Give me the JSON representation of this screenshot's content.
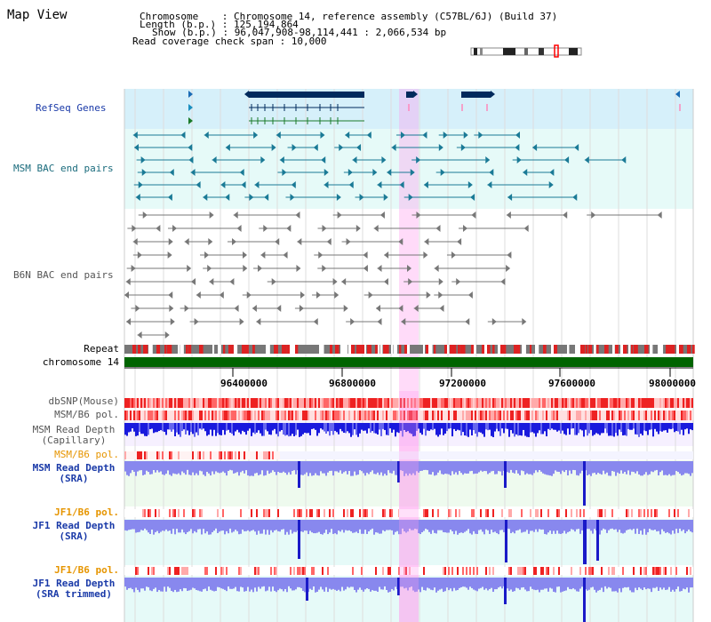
{
  "title": "Map View",
  "info": {
    "line1": "Chromosome    : Chromosome 14, reference assembly (C57BL/6J) (Build 37)",
    "line2": "Length (b.p.) : 125,194,864",
    "line3": "Show (b.p.) : 96,047,908-98,114,441 : 2,066,534 bp",
    "line4": "Read coverage check span : 10,000"
  },
  "colors": {
    "gene": "#002a5c",
    "mrna_tick": "#ff88bb",
    "refseq_bg": "#d6f0fa",
    "bac_msm": "#1a7a96",
    "bac_b6n": "#777777",
    "highlight": "#ff99ee",
    "chromosome": "#006400",
    "snp": "#ff5555",
    "depth": "#2222dd",
    "depth_light": "#8888ee",
    "label_blue": "#1a3aa8",
    "label_orange": "#e69500",
    "label_teal": "#1a6b7c"
  },
  "tracks": {
    "refseq": "RefSeq Genes",
    "msm_bac": "MSM BAC end pairs",
    "b6n_bac": "B6N BAC end pairs",
    "repeat": "Repeat",
    "chromosome": "chromosome 14",
    "dbsnp": "dbSNP(Mouse)",
    "msm_b6_pol": "MSM/B6 pol.",
    "msm_depth_cap": "MSM Read Depth\n(Capillary)",
    "msm_b6_pol2": "MSM/B6 pol.",
    "msm_depth_sra": "MSM Read Depth\n(SRA)",
    "jf1_b6_pol": "JF1/B6 pol.",
    "jf1_depth_sra": "JF1 Read Depth\n(SRA)",
    "jf1_b6_pol2": "JF1/B6 pol.",
    "jf1_depth_trim": "JF1 Read Depth\n(SRA trimmed)"
  },
  "axis_ticks": [
    "96400000",
    "96800000",
    "97200000",
    "97600000",
    "98000000"
  ],
  "ideogram": {
    "icon": "chromosome-ideogram",
    "position_marker": "red-box"
  },
  "genes": [
    {
      "strand": "left",
      "exon_ticks": 8
    },
    {
      "strand": "right",
      "exon_ticks": 1
    },
    {
      "strand": "right",
      "exon_ticks": 1
    },
    {
      "strand": "left",
      "exon_ticks": 1
    }
  ]
}
